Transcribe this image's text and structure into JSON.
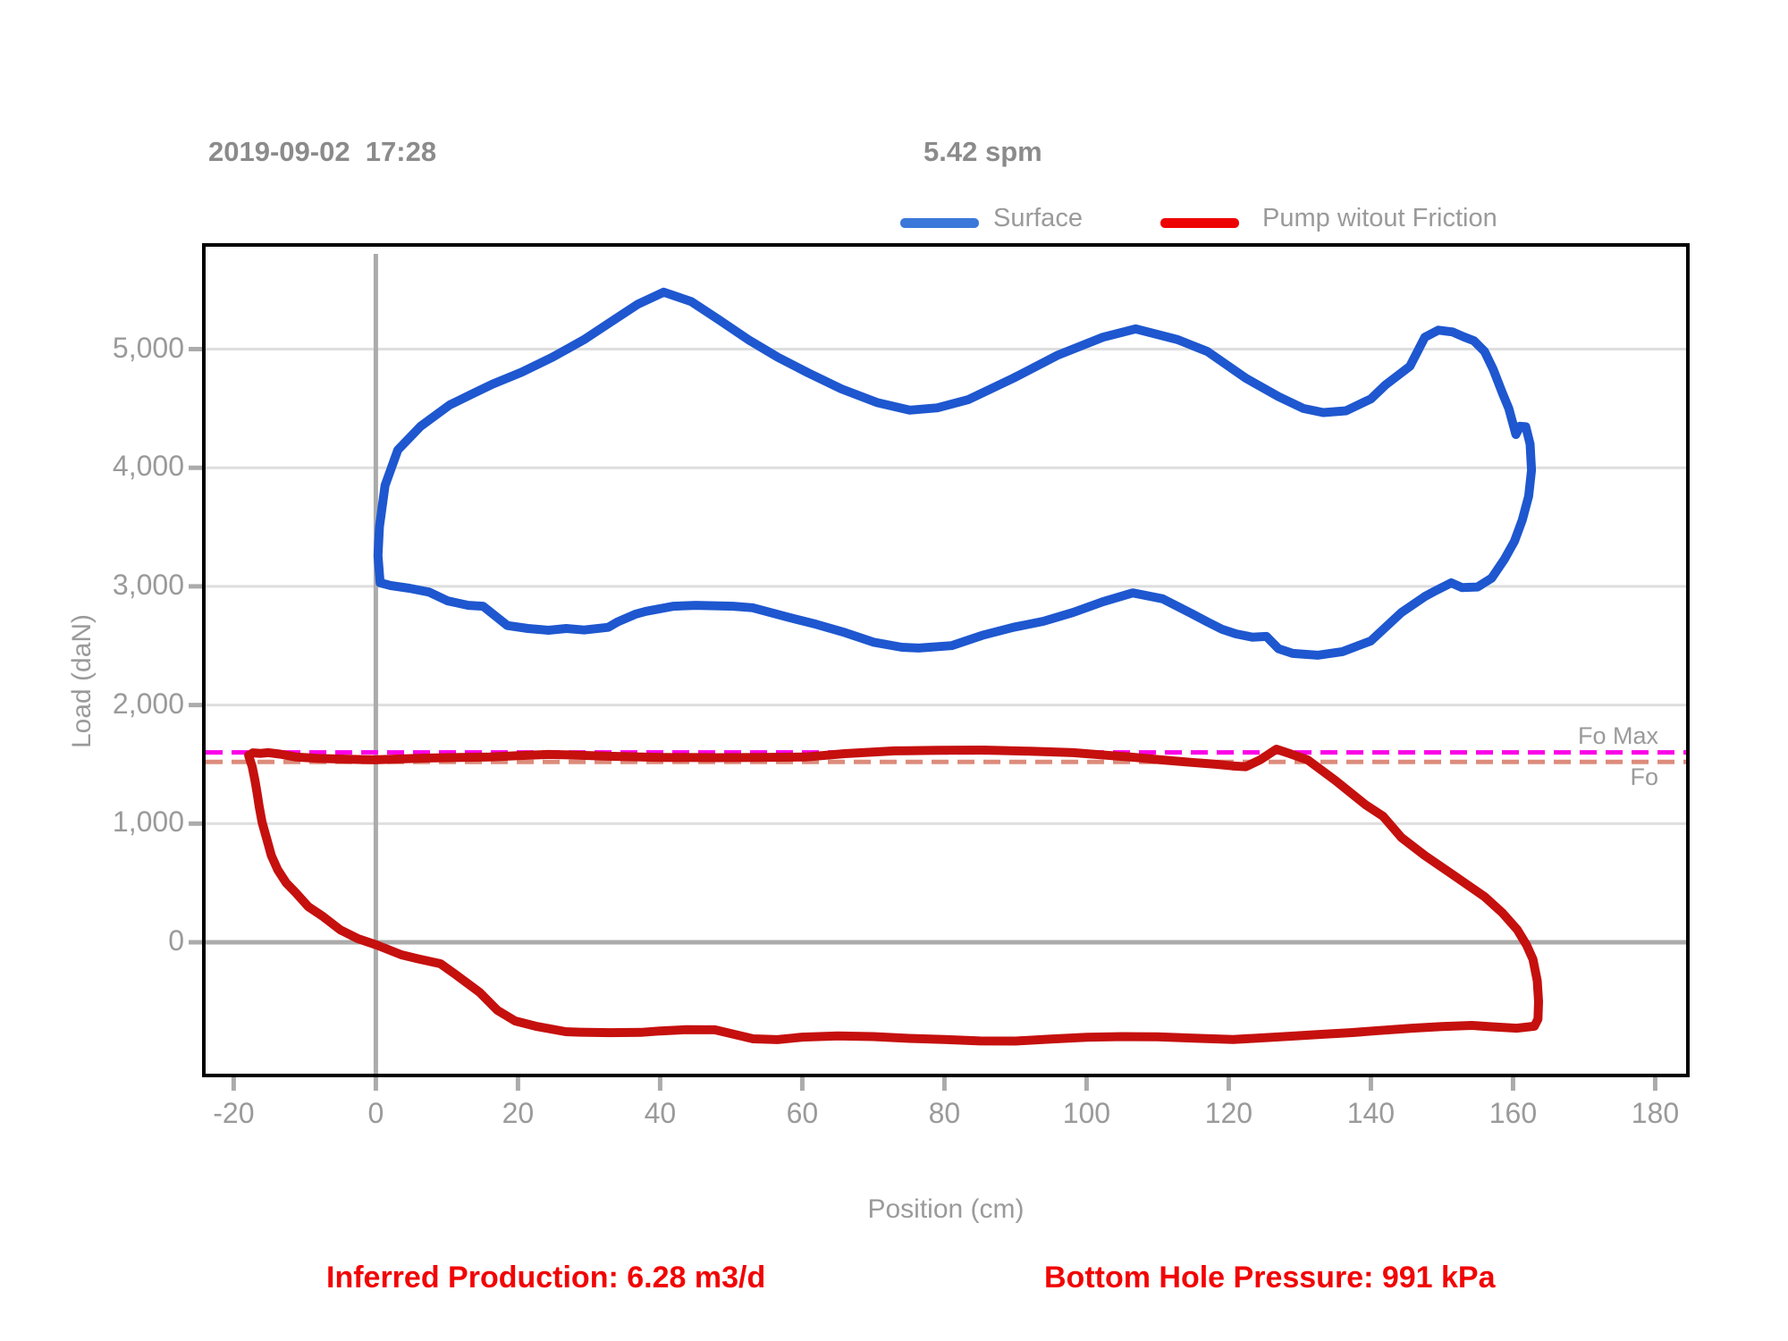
{
  "header": {
    "timestamp": "2019-09-02  17:28",
    "spm": "5.42 spm"
  },
  "legend": {
    "items": [
      {
        "label": "Surface",
        "color": "#3B78D9"
      },
      {
        "label": "Pump witout Friction",
        "color": "#EE0303"
      }
    ]
  },
  "axes": {
    "y_title": "Load (daN)",
    "x_title": "Position (cm)"
  },
  "refs": {
    "fo_max_label": "Fo Max",
    "fo_label": "Fo"
  },
  "footer": {
    "inferred_production": "Inferred Production: 6.28 m3/d",
    "bottom_hole_pressure": "Bottom Hole Pressure: 991 kPa"
  },
  "colors": {
    "surface_line": "#1E57CF",
    "pump_line": "#C5100E",
    "fo_max_line": "#FB00E8",
    "fo_line": "#DC8C7C",
    "gridline": "#DEDEDE",
    "axis_line": "#ABABAB",
    "border": "#000000",
    "tick_text": "#9A9A9A"
  },
  "chart_data": {
    "type": "line",
    "title": "Dynamometer card: Load vs Position",
    "xlabel": "Position (cm)",
    "ylabel": "Load (daN)",
    "xlim": [
      -24.2,
      184.6
    ],
    "ylim": [
      -1123,
      5878
    ],
    "grid": "horizontal",
    "legend_position": "top",
    "x_ticks": [
      {
        "v": -20,
        "label": "-20"
      },
      {
        "v": 0,
        "label": "0"
      },
      {
        "v": 20,
        "label": "20"
      },
      {
        "v": 40,
        "label": "40"
      },
      {
        "v": 60,
        "label": "60"
      },
      {
        "v": 80,
        "label": "80"
      },
      {
        "v": 100,
        "label": "100"
      },
      {
        "v": 120,
        "label": "120"
      },
      {
        "v": 140,
        "label": "140"
      },
      {
        "v": 160,
        "label": "160"
      },
      {
        "v": 180,
        "label": "180"
      }
    ],
    "y_ticks": [
      {
        "v": 0,
        "label": "0"
      },
      {
        "v": 1000,
        "label": "1,000"
      },
      {
        "v": 2000,
        "label": "2,000"
      },
      {
        "v": 3000,
        "label": "3,000"
      },
      {
        "v": 4000,
        "label": "4,000"
      },
      {
        "v": 5000,
        "label": "5,000"
      }
    ],
    "reference_lines": [
      {
        "name": "Fo Max",
        "value": 1600,
        "style": "dashed",
        "color": "#FB00E8"
      },
      {
        "name": "Fo",
        "value": 1520,
        "style": "dashed",
        "color": "#DC8C7C"
      }
    ],
    "series": [
      {
        "name": "Surface",
        "color": "#1E57CF",
        "closed": true,
        "points": [
          [
            0.6,
            3030
          ],
          [
            0.3,
            3260
          ],
          [
            0.5,
            3500
          ],
          [
            1.3,
            3850
          ],
          [
            3.1,
            4150
          ],
          [
            6.3,
            4350
          ],
          [
            10.4,
            4530
          ],
          [
            13.5,
            4620
          ],
          [
            16.4,
            4705
          ],
          [
            20.5,
            4805
          ],
          [
            24.8,
            4930
          ],
          [
            29.3,
            5080
          ],
          [
            33.6,
            5250
          ],
          [
            36.9,
            5380
          ],
          [
            40.5,
            5480
          ],
          [
            44.4,
            5400
          ],
          [
            48.2,
            5250
          ],
          [
            52.4,
            5080
          ],
          [
            56.6,
            4930
          ],
          [
            60.8,
            4800
          ],
          [
            65.5,
            4665
          ],
          [
            70.5,
            4550
          ],
          [
            75.1,
            4485
          ],
          [
            79.0,
            4505
          ],
          [
            83.4,
            4575
          ],
          [
            89.7,
            4755
          ],
          [
            96.0,
            4950
          ],
          [
            102.3,
            5100
          ],
          [
            106.9,
            5170
          ],
          [
            112.8,
            5080
          ],
          [
            117.0,
            4980
          ],
          [
            122.4,
            4755
          ],
          [
            127.0,
            4600
          ],
          [
            130.5,
            4500
          ],
          [
            133.3,
            4465
          ],
          [
            136.5,
            4480
          ],
          [
            140.0,
            4580
          ],
          [
            142.1,
            4700
          ],
          [
            145.5,
            4855
          ],
          [
            147.6,
            5100
          ],
          [
            149.5,
            5160
          ],
          [
            151.5,
            5145
          ],
          [
            153.0,
            5105
          ],
          [
            154.5,
            5070
          ],
          [
            156.0,
            4980
          ],
          [
            157.2,
            4830
          ],
          [
            158.5,
            4630
          ],
          [
            159.4,
            4500
          ],
          [
            160.4,
            4280
          ],
          [
            161.0,
            4350
          ],
          [
            161.8,
            4345
          ],
          [
            162.4,
            4200
          ],
          [
            162.6,
            3980
          ],
          [
            162.2,
            3760
          ],
          [
            161.3,
            3560
          ],
          [
            160.2,
            3380
          ],
          [
            158.8,
            3230
          ],
          [
            157.0,
            3070
          ],
          [
            155.0,
            2995
          ],
          [
            152.8,
            2990
          ],
          [
            151.3,
            3030
          ],
          [
            149.0,
            2960
          ],
          [
            147.6,
            2915
          ],
          [
            144.3,
            2780
          ],
          [
            140.0,
            2540
          ],
          [
            136.0,
            2450
          ],
          [
            132.5,
            2420
          ],
          [
            129.0,
            2435
          ],
          [
            127.0,
            2475
          ],
          [
            125.3,
            2578
          ],
          [
            123.3,
            2572
          ],
          [
            121.0,
            2600
          ],
          [
            119.0,
            2640
          ],
          [
            117.0,
            2700
          ],
          [
            114.8,
            2770
          ],
          [
            110.7,
            2895
          ],
          [
            106.5,
            2945
          ],
          [
            102.3,
            2870
          ],
          [
            98.1,
            2780
          ],
          [
            93.9,
            2705
          ],
          [
            89.7,
            2655
          ],
          [
            85.5,
            2590
          ],
          [
            81.0,
            2500
          ],
          [
            76.4,
            2480
          ],
          [
            74.0,
            2487
          ],
          [
            70.0,
            2530
          ],
          [
            66.0,
            2610
          ],
          [
            62.0,
            2680
          ],
          [
            58.0,
            2740
          ],
          [
            53.0,
            2820
          ],
          [
            50.3,
            2833
          ],
          [
            45.0,
            2840
          ],
          [
            41.9,
            2833
          ],
          [
            38.0,
            2790
          ],
          [
            36.5,
            2765
          ],
          [
            34.0,
            2700
          ],
          [
            32.7,
            2655
          ],
          [
            29.3,
            2632
          ],
          [
            26.8,
            2645
          ],
          [
            24.3,
            2630
          ],
          [
            21.4,
            2645
          ],
          [
            18.5,
            2670
          ],
          [
            15.1,
            2833
          ],
          [
            13.0,
            2840
          ],
          [
            10.1,
            2878
          ],
          [
            7.5,
            2952
          ],
          [
            4.7,
            2984
          ],
          [
            2.1,
            3007
          ]
        ]
      },
      {
        "name": "Pump witout Friction",
        "color": "#C5100E",
        "closed": true,
        "points": [
          [
            -17.9,
            1575
          ],
          [
            -17.3,
            1597
          ],
          [
            -16.2,
            1592
          ],
          [
            -15.1,
            1598
          ],
          [
            -13.5,
            1586
          ],
          [
            -11.3,
            1562
          ],
          [
            -8.0,
            1549
          ],
          [
            -5.0,
            1545
          ],
          [
            -2.0,
            1540
          ],
          [
            0.0,
            1538
          ],
          [
            3.0,
            1545
          ],
          [
            7.5,
            1553
          ],
          [
            12.0,
            1558
          ],
          [
            16.0,
            1561
          ],
          [
            20.0,
            1573
          ],
          [
            24.3,
            1583
          ],
          [
            28.0,
            1578
          ],
          [
            32.7,
            1568
          ],
          [
            40.0,
            1558
          ],
          [
            48.0,
            1556
          ],
          [
            54.0,
            1558
          ],
          [
            60.4,
            1561
          ],
          [
            66.0,
            1590
          ],
          [
            73.0,
            1613
          ],
          [
            79.0,
            1618
          ],
          [
            85.5,
            1620
          ],
          [
            92.0,
            1610
          ],
          [
            98.1,
            1598
          ],
          [
            102.0,
            1580
          ],
          [
            106.5,
            1560
          ],
          [
            110.0,
            1540
          ],
          [
            114.8,
            1516
          ],
          [
            118.2,
            1500
          ],
          [
            120.5,
            1487
          ],
          [
            122.4,
            1480
          ],
          [
            124.5,
            1540
          ],
          [
            126.7,
            1628
          ],
          [
            128.5,
            1592
          ],
          [
            131.1,
            1537
          ],
          [
            135.0,
            1364
          ],
          [
            139.2,
            1161
          ],
          [
            141.7,
            1063
          ],
          [
            144.3,
            882
          ],
          [
            147.6,
            731
          ],
          [
            151.8,
            558
          ],
          [
            156.0,
            384
          ],
          [
            158.5,
            248
          ],
          [
            160.6,
            106
          ],
          [
            161.9,
            -23
          ],
          [
            162.8,
            -143
          ],
          [
            163.4,
            -324
          ],
          [
            163.6,
            -500
          ],
          [
            163.5,
            -648
          ],
          [
            163.0,
            -708
          ],
          [
            160.5,
            -724
          ],
          [
            157.0,
            -712
          ],
          [
            154.2,
            -701
          ],
          [
            150.0,
            -710
          ],
          [
            145.8,
            -724
          ],
          [
            141.0,
            -745
          ],
          [
            137.4,
            -761
          ],
          [
            133.0,
            -776
          ],
          [
            129.1,
            -791
          ],
          [
            124.0,
            -808
          ],
          [
            120.6,
            -820
          ],
          [
            115.0,
            -808
          ],
          [
            110.0,
            -797
          ],
          [
            105.0,
            -795
          ],
          [
            100.0,
            -801
          ],
          [
            95.0,
            -816
          ],
          [
            90.0,
            -833
          ],
          [
            85.0,
            -832
          ],
          [
            80.0,
            -820
          ],
          [
            75.0,
            -810
          ],
          [
            70.0,
            -795
          ],
          [
            65.0,
            -790
          ],
          [
            60.0,
            -800
          ],
          [
            56.5,
            -821
          ],
          [
            53.1,
            -814
          ],
          [
            47.7,
            -738
          ],
          [
            43.6,
            -737
          ],
          [
            40.0,
            -748
          ],
          [
            37.3,
            -760
          ],
          [
            33.0,
            -762
          ],
          [
            28.8,
            -758
          ],
          [
            26.7,
            -754
          ],
          [
            22.5,
            -708
          ],
          [
            19.6,
            -663
          ],
          [
            17.1,
            -573
          ],
          [
            14.6,
            -422
          ],
          [
            11.2,
            -271
          ],
          [
            9.1,
            -181
          ],
          [
            6.0,
            -140
          ],
          [
            3.6,
            -106
          ],
          [
            0.1,
            -23
          ],
          [
            -2.5,
            30
          ],
          [
            -5.0,
            105
          ],
          [
            -7.5,
            220
          ],
          [
            -9.5,
            300
          ],
          [
            -11.3,
            420
          ],
          [
            -12.6,
            500
          ],
          [
            -13.8,
            610
          ],
          [
            -14.7,
            731
          ],
          [
            -15.3,
            860
          ],
          [
            -16.0,
            1010
          ],
          [
            -16.4,
            1140
          ],
          [
            -16.7,
            1258
          ],
          [
            -17.0,
            1364
          ],
          [
            -17.4,
            1480
          ]
        ]
      }
    ]
  }
}
